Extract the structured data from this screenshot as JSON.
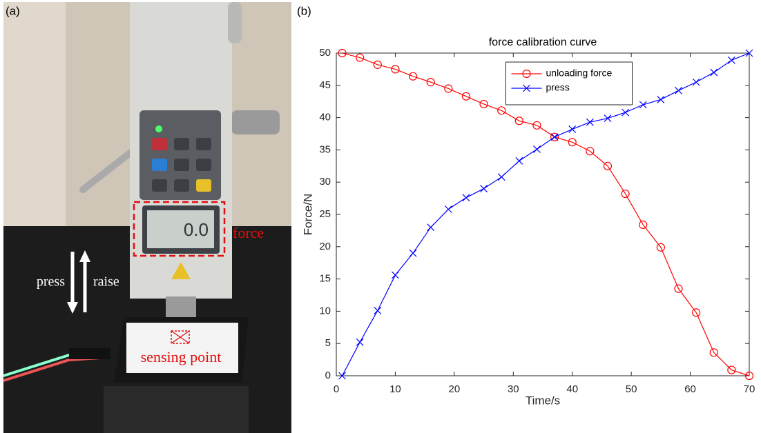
{
  "panel_a": {
    "label": "(a)",
    "display": "0.0",
    "force": "force",
    "press": "press",
    "raise": "raise",
    "sensing": "sensing point"
  },
  "chart_data": {
    "type": "line",
    "panel_label": "(b)",
    "title": "force calibration curve",
    "x_label": "Time/s",
    "y_label": "Force/N",
    "x": [
      1,
      4,
      7,
      10,
      13,
      16,
      19,
      22,
      25,
      28,
      31,
      34,
      37,
      40,
      43,
      46,
      49,
      52,
      55,
      58,
      61,
      64,
      67,
      70
    ],
    "series": [
      {
        "name": "unloading force",
        "color": "#ff0000",
        "marker": "o",
        "values": [
          50,
          49.3,
          48.2,
          47.5,
          46.4,
          45.5,
          44.5,
          43.3,
          42.1,
          41.1,
          39.5,
          38.8,
          37.0,
          36.2,
          34.8,
          32.5,
          28.2,
          23.4,
          19.9,
          13.5,
          9.8,
          3.6,
          0.9,
          0
        ]
      },
      {
        "name": "press",
        "color": "#0000ff",
        "marker": "x",
        "values": [
          0,
          5.2,
          10.1,
          15.6,
          19,
          23,
          25.8,
          27.6,
          29,
          30.8,
          33.3,
          35.1,
          37,
          38.2,
          39.3,
          39.9,
          40.8,
          42,
          42.8,
          44.2,
          45.5,
          47,
          48.9,
          50
        ]
      }
    ],
    "xlim": [
      0,
      70
    ],
    "xticks": [
      0,
      10,
      20,
      30,
      40,
      50,
      60,
      70
    ],
    "ylim": [
      0,
      50
    ],
    "yticks": [
      0,
      5,
      10,
      15,
      20,
      25,
      30,
      35,
      40,
      45,
      50
    ],
    "legend": "upper center"
  }
}
